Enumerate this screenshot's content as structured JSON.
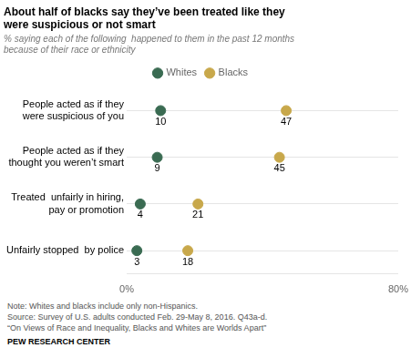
{
  "chart_data": {
    "type": "dot",
    "orientation": "horizontal",
    "title": "About half of blacks say they’ve been treated like they\nwere suspicious or not smart",
    "subtitle": "% saying each of the following  happened to them in the past 12 months\nbecause of their race or ethnicity",
    "categories": [
      "People acted as if they\nwere suspicious of you",
      "People acted as if they\nthought you weren’t smart",
      "Treated  unfairly in hiring,\npay or promotion",
      "Unfairly stopped  by police"
    ],
    "series": [
      {
        "name": "Whites",
        "color": "#3a6b52",
        "values": [
          10,
          9,
          4,
          3
        ]
      },
      {
        "name": "Blacks",
        "color": "#c8a84b",
        "values": [
          47,
          45,
          21,
          18
        ]
      }
    ],
    "xlim": [
      0,
      80
    ],
    "xticks": [
      {
        "value": 0,
        "label": "0%"
      },
      {
        "value": 80,
        "label": "80%"
      }
    ],
    "data_labels": true,
    "grid": true,
    "legend": "top",
    "annotations": [
      "Note: Whites and blacks include only non-Hispanics.",
      "Source: Survey of U.S. adults conducted Feb. 29-May 8, 2016. Q43a-d.",
      "“On Views of Race and Inequality, Blacks and Whites are Worlds Apart”",
      "PEW RESEARCH CENTER"
    ]
  }
}
